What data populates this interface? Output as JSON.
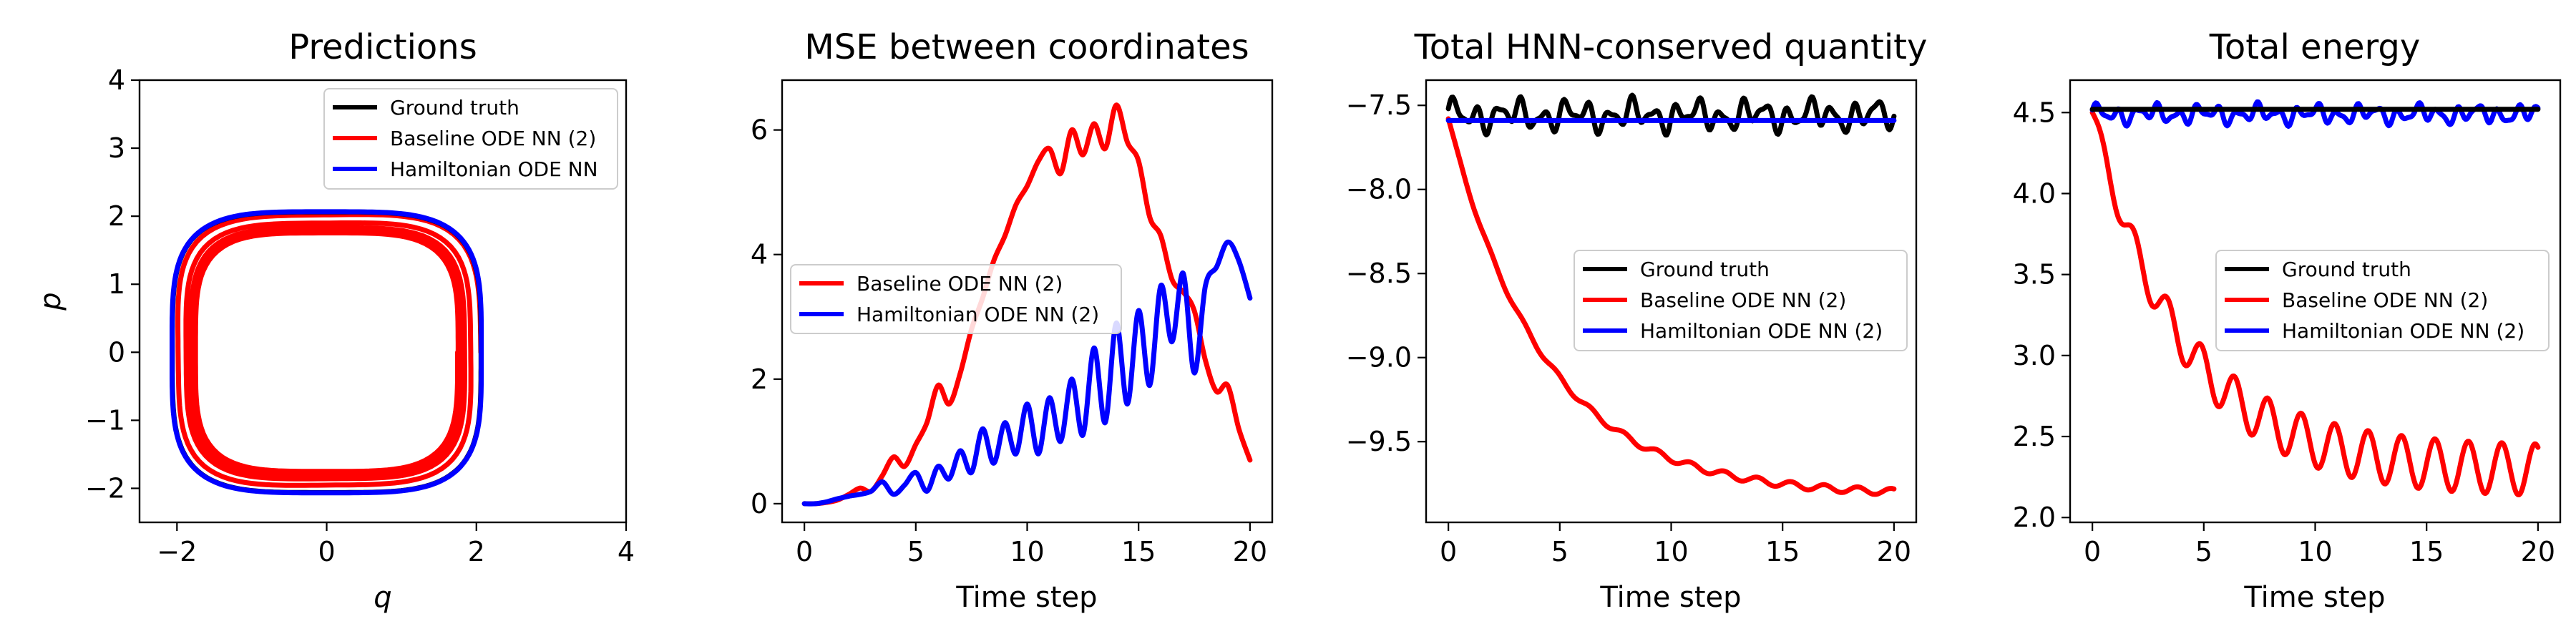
{
  "chart_data": [
    {
      "type": "line",
      "title": "Predictions",
      "xlabel": "q",
      "ylabel": "p",
      "xlim": [
        -2.5,
        4
      ],
      "ylim": [
        -2.5,
        4
      ],
      "xticks": [
        -2,
        0,
        2,
        4
      ],
      "yticks": [
        -2,
        -1,
        0,
        1,
        2,
        3,
        4
      ],
      "legend": "top-right",
      "series": [
        {
          "name": "Ground truth",
          "color": "#000000",
          "shape": "quartic",
          "H": 4.52,
          "turns": 4
        },
        {
          "name": "Baseline ODE NN (2)",
          "color": "#ff0000",
          "shape": "quartic-spiral",
          "H_start": 4.5,
          "H_end": 2.3,
          "turns": 6
        },
        {
          "name": "Hamiltonian ODE NN",
          "color": "#0000ff",
          "shape": "quartic",
          "H": 4.55,
          "turns": 4
        }
      ]
    },
    {
      "type": "line",
      "title": "MSE between coordinates",
      "xlabel": "Time step",
      "ylabel": "",
      "xlim": [
        -1,
        21
      ],
      "ylim": [
        -0.3,
        6.8
      ],
      "xticks": [
        0,
        5,
        10,
        15,
        20
      ],
      "yticks": [
        0,
        2,
        4,
        6
      ],
      "legend": "center-left",
      "series": [
        {
          "name": "Baseline ODE NN (2)",
          "color": "#ff0000",
          "x": [
            0,
            0.5,
            1,
            1.5,
            2,
            2.5,
            3,
            3.5,
            4,
            4.5,
            5,
            5.5,
            6,
            6.5,
            7,
            7.5,
            8,
            8.5,
            9,
            9.5,
            10,
            10.5,
            11,
            11.5,
            12,
            12.5,
            13,
            13.5,
            14,
            14.5,
            15,
            15.5,
            16,
            16.5,
            17,
            17.5,
            18,
            18.5,
            19,
            19.5,
            20
          ],
          "y": [
            0,
            0,
            0.02,
            0.06,
            0.15,
            0.25,
            0.2,
            0.45,
            0.75,
            0.6,
            0.95,
            1.3,
            1.9,
            1.6,
            2.1,
            2.8,
            3.3,
            3.9,
            4.3,
            4.8,
            5.1,
            5.5,
            5.7,
            5.3,
            6.0,
            5.6,
            6.1,
            5.7,
            6.4,
            5.8,
            5.5,
            4.6,
            4.3,
            3.6,
            3.4,
            3.1,
            2.3,
            1.8,
            1.9,
            1.2,
            0.7
          ]
        },
        {
          "name": "Hamiltonian ODE NN (2)",
          "color": "#0000ff",
          "x": [
            0,
            0.5,
            1,
            1.5,
            2,
            2.5,
            3,
            3.5,
            4,
            4.5,
            5,
            5.5,
            6,
            6.5,
            7,
            7.5,
            8,
            8.5,
            9,
            9.5,
            10,
            10.5,
            11,
            11.5,
            12,
            12.5,
            13,
            13.5,
            14,
            14.5,
            15,
            15.5,
            16,
            16.5,
            17,
            17.5,
            18,
            18.5,
            19,
            19.5,
            20
          ],
          "y": [
            0,
            0,
            0.03,
            0.08,
            0.12,
            0.15,
            0.2,
            0.35,
            0.15,
            0.3,
            0.5,
            0.2,
            0.6,
            0.4,
            0.85,
            0.5,
            1.2,
            0.65,
            1.3,
            0.8,
            1.6,
            0.8,
            1.7,
            1.0,
            2.0,
            1.1,
            2.5,
            1.3,
            2.9,
            1.6,
            3.1,
            1.9,
            3.5,
            2.6,
            3.7,
            2.1,
            3.5,
            3.8,
            4.2,
            3.9,
            3.3
          ]
        }
      ]
    },
    {
      "type": "line",
      "title": "Total HNN-conserved quantity",
      "xlabel": "Time step",
      "ylabel": "",
      "xlim": [
        -1,
        21
      ],
      "ylim": [
        -9.98,
        -7.35
      ],
      "xticks": [
        0,
        5,
        10,
        15,
        20
      ],
      "yticks": [
        -9.5,
        -9.0,
        -8.5,
        -8.0,
        -7.5
      ],
      "legend": "center-right",
      "series": [
        {
          "name": "Ground truth",
          "color": "#000000",
          "base": -7.56,
          "amplitude": 0.11,
          "period": 1.0
        },
        {
          "name": "Baseline ODE NN (2)",
          "color": "#ff0000",
          "start": -7.58,
          "end": -9.82,
          "tau": 4.3,
          "wiggle": 0.02
        },
        {
          "name": "Hamiltonian ODE NN (2)",
          "color": "#0000ff",
          "value": -7.59
        }
      ]
    },
    {
      "type": "line",
      "title": "Total energy",
      "xlabel": "Time step",
      "ylabel": "",
      "xlim": [
        -1,
        21
      ],
      "ylim": [
        1.97,
        4.7
      ],
      "xticks": [
        0,
        5,
        10,
        15,
        20
      ],
      "yticks": [
        2.0,
        2.5,
        3.0,
        3.5,
        4.0,
        4.5
      ],
      "legend": "center-right",
      "series": [
        {
          "name": "Ground truth",
          "color": "#000000",
          "value": 4.52
        },
        {
          "name": "Baseline ODE NN (2)",
          "color": "#ff0000",
          "start": 4.5,
          "end": 2.28,
          "tau": 4.0,
          "wiggle": 0.16
        },
        {
          "name": "Hamiltonian ODE NN (2)",
          "color": "#0000ff",
          "base": 4.49,
          "amplitude": 0.07,
          "period": 0.9
        }
      ]
    }
  ]
}
